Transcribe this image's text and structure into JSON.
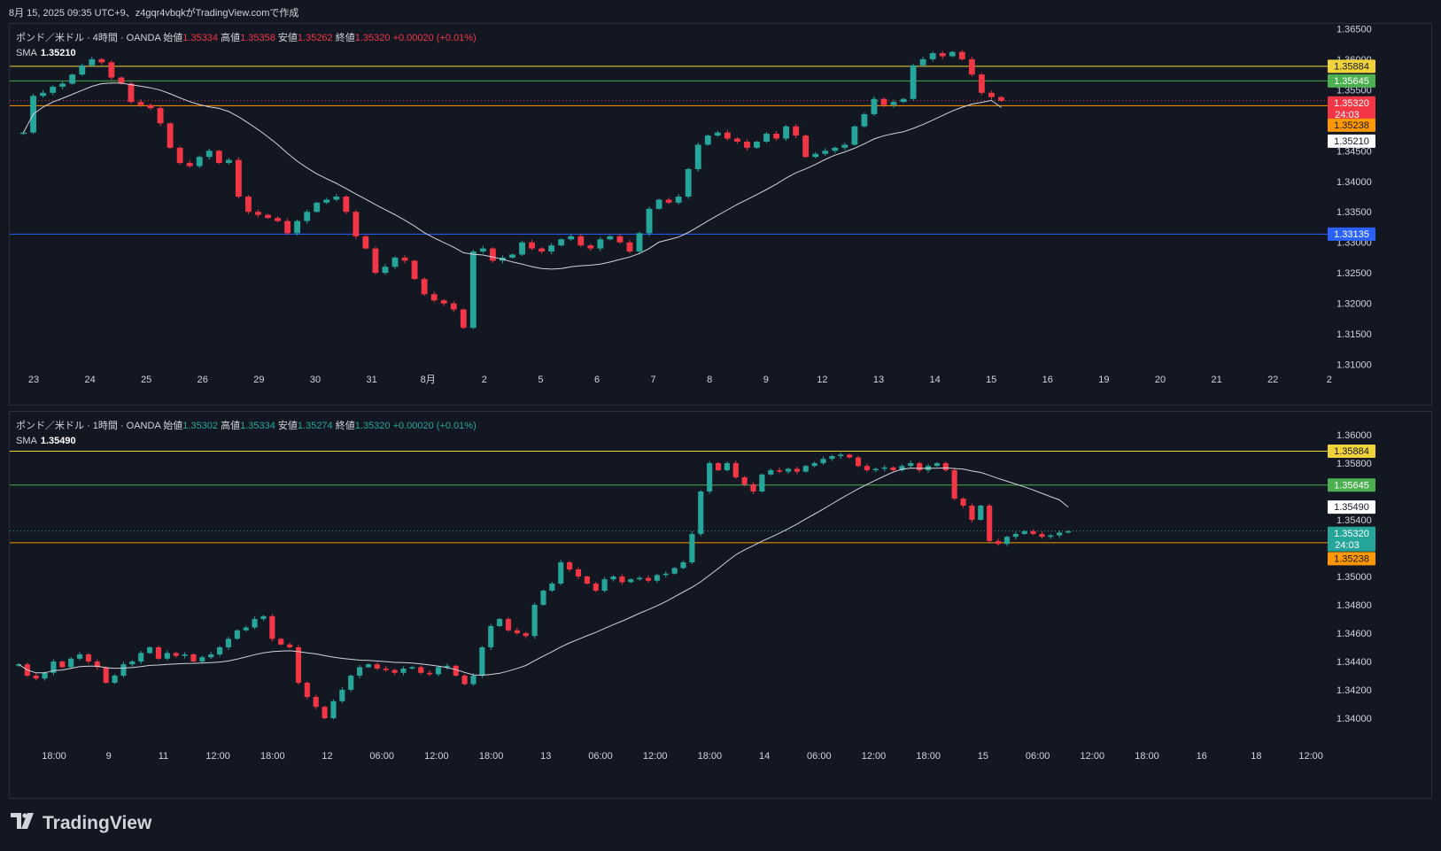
{
  "header": {
    "text": "8月 15, 2025 09:35 UTC+9、z4gqr4vbqkがTradingView.comで作成"
  },
  "footer": {
    "brand": "TradingView",
    "logo_icon": "tradingview-logo-icon"
  },
  "colors": {
    "background": "#131722",
    "up": "#26a69a",
    "down": "#f23645",
    "sma": "#d1d4dc",
    "line_yellow": "#f0d33a",
    "line_green": "#4caf50",
    "line_orange": "#ff9800",
    "line_blue": "#2962ff",
    "grid_text": "#d1d4dc"
  },
  "panels": [
    {
      "legend": {
        "symbol": "ポンド／米ドル · 4時間 · OANDA",
        "open_label": "始値",
        "open": "1.35334",
        "high_label": "高値",
        "high": "1.35358",
        "low_label": "安値",
        "low": "1.35262",
        "close_label": "終値",
        "close": "1.35320",
        "change": "+0.00020 (+0.01%)",
        "sma_label": "SMA",
        "sma_value": "1.35210"
      },
      "price_ticks": [
        "1.36500",
        "1.36000",
        "1.35500",
        "1.35000",
        "1.34500",
        "1.34000",
        "1.33500",
        "1.33000",
        "1.32500",
        "1.32000",
        "1.31500",
        "1.31000"
      ],
      "time_ticks": [
        "23",
        "24",
        "25",
        "26",
        "29",
        "30",
        "31",
        "8月",
        "2",
        "5",
        "6",
        "7",
        "8",
        "9",
        "12",
        "13",
        "14",
        "15",
        "16",
        "19",
        "20",
        "21",
        "22",
        "2"
      ],
      "badges": [
        {
          "text": "1.35884",
          "bg": "#f0d33a",
          "fg": "#131722"
        },
        {
          "text": "1.35645",
          "bg": "#4caf50",
          "fg": "#ffffff"
        },
        {
          "text": "1.35320",
          "sub": "24:03",
          "bg": "#f23645",
          "fg": "#ffffff"
        },
        {
          "text": "1.35238",
          "bg": "#ff9800",
          "fg": "#131722"
        },
        {
          "text": "1.35210",
          "bg": "#ffffff",
          "fg": "#131722"
        },
        {
          "text": "1.33135",
          "bg": "#2962ff",
          "fg": "#ffffff"
        }
      ]
    },
    {
      "legend": {
        "symbol": "ポンド／米ドル · 1時間 · OANDA",
        "open_label": "始値",
        "open": "1.35302",
        "high_label": "高値",
        "high": "1.35334",
        "low_label": "安値",
        "low": "1.35274",
        "close_label": "終値",
        "close": "1.35320",
        "change": "+0.00020 (+0.01%)",
        "sma_label": "SMA",
        "sma_value": "1.35490"
      },
      "price_ticks": [
        "1.36000",
        "1.35800",
        "1.35400",
        "1.35000",
        "1.34800",
        "1.34600",
        "1.34400",
        "1.34200",
        "1.34000"
      ],
      "time_ticks": [
        "18:00",
        "9",
        "11",
        "12:00",
        "18:00",
        "12",
        "06:00",
        "12:00",
        "18:00",
        "13",
        "06:00",
        "12:00",
        "18:00",
        "14",
        "06:00",
        "12:00",
        "18:00",
        "15",
        "06:00",
        "12:00",
        "18:00",
        "16",
        "18",
        "12:00"
      ],
      "badges": [
        {
          "text": "1.35884",
          "bg": "#f0d33a",
          "fg": "#131722"
        },
        {
          "text": "1.35645",
          "bg": "#4caf50",
          "fg": "#ffffff"
        },
        {
          "text": "1.35490",
          "bg": "#ffffff",
          "fg": "#131722"
        },
        {
          "text": "1.35320",
          "sub": "24:03",
          "bg": "#26a69a",
          "fg": "#ffffff"
        },
        {
          "text": "1.35238",
          "bg": "#ff9800",
          "fg": "#131722"
        }
      ]
    }
  ],
  "chart_data": [
    {
      "type": "candlestick",
      "timeframe": "4H",
      "ylim": [
        1.3095,
        1.3655
      ],
      "hlines": [
        {
          "value": 1.35884,
          "color": "#f0d33a"
        },
        {
          "value": 1.35645,
          "color": "#4caf50"
        },
        {
          "value": 1.35238,
          "color": "#ff9800"
        },
        {
          "value": 1.33135,
          "color": "#2962ff"
        }
      ],
      "price_line": 1.3532,
      "candles_close": [
        1.348,
        1.354,
        1.3545,
        1.3555,
        1.356,
        1.3575,
        1.359,
        1.36,
        1.3595,
        1.357,
        1.356,
        1.353,
        1.3525,
        1.352,
        1.3495,
        1.3455,
        1.343,
        1.3425,
        1.344,
        1.345,
        1.343,
        1.3435,
        1.3375,
        1.335,
        1.3345,
        1.334,
        1.3335,
        1.3315,
        1.3335,
        1.335,
        1.3365,
        1.337,
        1.3375,
        1.335,
        1.331,
        1.329,
        1.325,
        1.326,
        1.3275,
        1.327,
        1.324,
        1.3215,
        1.3205,
        1.32,
        1.319,
        1.316,
        1.3285,
        1.329,
        1.327,
        1.3275,
        1.328,
        1.33,
        1.329,
        1.3285,
        1.3295,
        1.3305,
        1.331,
        1.3295,
        1.329,
        1.3305,
        1.331,
        1.33,
        1.3285,
        1.3315,
        1.3355,
        1.337,
        1.3365,
        1.3375,
        1.342,
        1.346,
        1.3475,
        1.348,
        1.347,
        1.3465,
        1.3455,
        1.3465,
        1.3478,
        1.347,
        1.349,
        1.3475,
        1.344,
        1.3445,
        1.345,
        1.3455,
        1.346,
        1.349,
        1.351,
        1.3535,
        1.3525,
        1.353,
        1.3535,
        1.359,
        1.36,
        1.361,
        1.3605,
        1.3612,
        1.36,
        1.3575,
        1.3545,
        1.3538,
        1.3532
      ],
      "sma_last": 1.3521
    },
    {
      "type": "candlestick",
      "timeframe": "1H",
      "ylim": [
        1.3385,
        1.3615
      ],
      "hlines": [
        {
          "value": 1.35884,
          "color": "#f0d33a"
        },
        {
          "value": 1.35645,
          "color": "#4caf50"
        },
        {
          "value": 1.35238,
          "color": "#ff9800"
        }
      ],
      "price_line": 1.3532,
      "candles_close": [
        1.3438,
        1.343,
        1.3428,
        1.3432,
        1.344,
        1.3436,
        1.3442,
        1.3445,
        1.344,
        1.3436,
        1.3425,
        1.343,
        1.3438,
        1.344,
        1.3446,
        1.345,
        1.3442,
        1.3446,
        1.3444,
        1.3445,
        1.344,
        1.3443,
        1.3445,
        1.345,
        1.3456,
        1.3462,
        1.3464,
        1.347,
        1.3472,
        1.3456,
        1.3452,
        1.345,
        1.3425,
        1.3415,
        1.3408,
        1.34,
        1.3412,
        1.342,
        1.343,
        1.3436,
        1.3438,
        1.3435,
        1.3434,
        1.3432,
        1.3435,
        1.3436,
        1.3432,
        1.3431,
        1.3436,
        1.3437,
        1.343,
        1.3424,
        1.343,
        1.345,
        1.3465,
        1.347,
        1.3462,
        1.346,
        1.3458,
        1.348,
        1.349,
        1.3495,
        1.351,
        1.3505,
        1.35,
        1.3495,
        1.349,
        1.3498,
        1.35,
        1.3496,
        1.3498,
        1.3499,
        1.3497,
        1.3501,
        1.3502,
        1.3506,
        1.351,
        1.353,
        1.356,
        1.358,
        1.3575,
        1.358,
        1.357,
        1.3565,
        1.356,
        1.3572,
        1.3575,
        1.3574,
        1.3576,
        1.3574,
        1.3578,
        1.358,
        1.3583,
        1.3585,
        1.3586,
        1.3584,
        1.3578,
        1.3575,
        1.3576,
        1.3577,
        1.3575,
        1.3578,
        1.358,
        1.3575,
        1.3578,
        1.358,
        1.3575,
        1.3555,
        1.355,
        1.354,
        1.355,
        1.3525,
        1.3523,
        1.3528,
        1.353,
        1.3532,
        1.353,
        1.3528,
        1.3529,
        1.3531,
        1.3532
      ],
      "sma_last": 1.3549
    }
  ]
}
